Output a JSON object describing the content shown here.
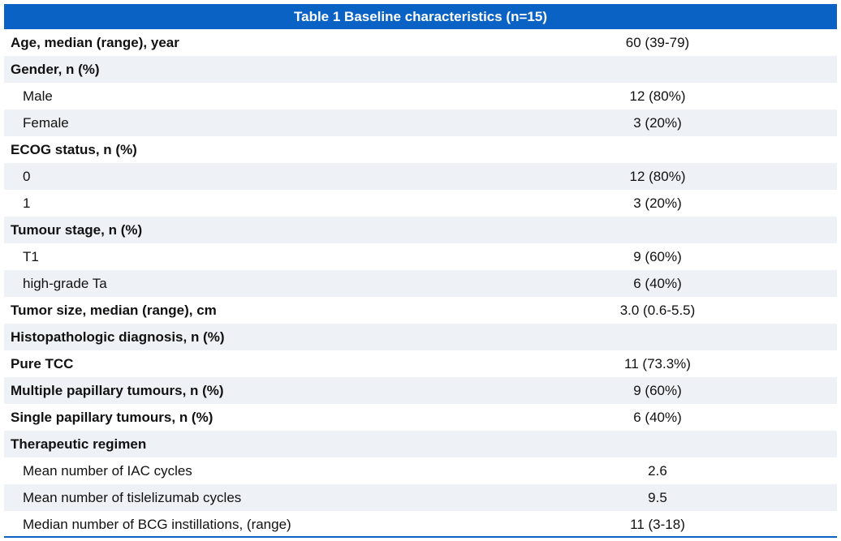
{
  "table": {
    "title": "Table 1 Baseline characteristics (n=15)",
    "rows": [
      {
        "label": "Age, median (range), year",
        "value": "60 (39-79)"
      },
      {
        "label": "Gender, n (%)"
      },
      {
        "label": "Male",
        "value": "12 (80%)",
        "indented": true
      },
      {
        "label": "Female",
        "value": "3 (20%)",
        "indented": true
      },
      {
        "label": "ECOG status, n (%)"
      },
      {
        "label": "0",
        "value": "12 (80%)",
        "indented": true
      },
      {
        "label": "1",
        "value": "3 (20%)",
        "indented": true
      },
      {
        "label": "Tumour stage, n (%)"
      },
      {
        "label": "T1",
        "value": "9 (60%)",
        "indented": true
      },
      {
        "label": "high-grade Ta",
        "value": "6 (40%)",
        "indented": true
      },
      {
        "label": "Tumor size, median (range), cm",
        "value": "3.0 (0.6-5.5)"
      },
      {
        "label": "Histopathologic diagnosis, n (%)"
      },
      {
        "label": "Pure TCC",
        "value": "11 (73.3%)"
      },
      {
        "label": "Multiple papillary tumours, n (%)",
        "value": "9 (60%)"
      },
      {
        "label": "Single papillary tumours, n (%)",
        "value": "6 (40%)"
      },
      {
        "label": "Therapeutic regimen"
      },
      {
        "label": "Mean number of IAC cycles",
        "value": "2.6",
        "indented": true
      },
      {
        "label": "Mean number of tislelizumab cycles",
        "value": "9.5",
        "indented": true
      },
      {
        "label": "Median number of BCG instillations, (range)",
        "value": "11 (3-18)",
        "indented": true
      }
    ]
  }
}
